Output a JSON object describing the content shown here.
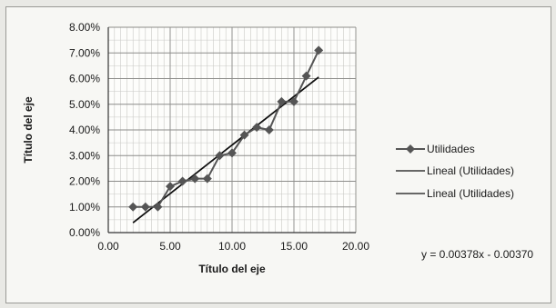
{
  "chart_data": {
    "type": "scatter",
    "xlabel": "Título del eje",
    "ylabel": "Título del eje",
    "xlim": [
      0,
      20
    ],
    "ylim": [
      0,
      0.08
    ],
    "x_ticks": [
      "0.00",
      "5.00",
      "10.00",
      "15.00",
      "20.00"
    ],
    "y_ticks": [
      "0.00%",
      "1.00%",
      "2.00%",
      "3.00%",
      "4.00%",
      "5.00%",
      "6.00%",
      "7.00%",
      "8.00%"
    ],
    "grid": true,
    "legend_position": "right",
    "series": [
      {
        "name": "Utilidades",
        "x": [
          2,
          3,
          4,
          5,
          6,
          7,
          8,
          9,
          10,
          11,
          12,
          13,
          14,
          15,
          16,
          17
        ],
        "y": [
          0.01,
          0.01,
          0.01,
          0.018,
          0.02,
          0.021,
          0.021,
          0.03,
          0.031,
          0.038,
          0.041,
          0.04,
          0.051,
          0.051,
          0.061,
          0.071
        ],
        "color": "#555555",
        "marker": "diamond"
      }
    ],
    "trendlines": [
      {
        "name": "Lineal (Utilidades)",
        "slope": 0.00378,
        "intercept": -0.0037,
        "x_range": [
          2,
          17
        ],
        "color": "#111111"
      },
      {
        "name": "Lineal (Utilidades)",
        "slope": 0.00378,
        "intercept": -0.0037,
        "x_range": [
          2,
          17
        ],
        "color": "#111111"
      }
    ],
    "equation": "y = 0.00378x - 0.00370"
  }
}
